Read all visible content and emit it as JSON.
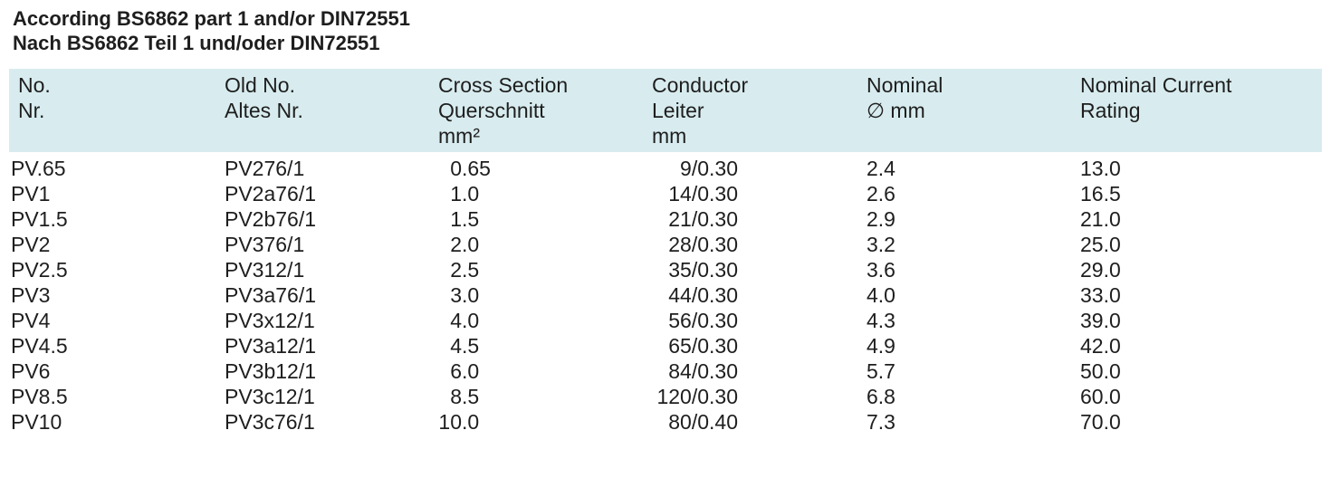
{
  "title": [
    "According BS6862 part 1 and/or DIN72551",
    "Nach BS6862 Teil 1 und/oder DIN72551"
  ],
  "table": {
    "header": [
      [
        "No.",
        "Nr."
      ],
      [
        "Old No.",
        "Altes Nr."
      ],
      [
        "Cross Section",
        "Querschnitt",
        "mm²"
      ],
      [
        "Conductor",
        "Leiter",
        "mm"
      ],
      [
        "Nominal",
        "∅ mm"
      ],
      [
        "Nominal Current",
        "Rating"
      ]
    ],
    "rows": [
      [
        "PV.65",
        "PV276/1",
        "0.65",
        "9/0.30",
        "2.4",
        "13.0"
      ],
      [
        "PV1",
        "PV2a76/1",
        "1.0",
        "14/0.30",
        "2.6",
        "16.5"
      ],
      [
        "PV1.5",
        "PV2b76/1",
        "1.5",
        "21/0.30",
        "2.9",
        "21.0"
      ],
      [
        "PV2",
        "PV376/1",
        "2.0",
        "28/0.30",
        "3.2",
        "25.0"
      ],
      [
        "PV2.5",
        "PV312/1",
        "2.5",
        "35/0.30",
        "3.6",
        "29.0"
      ],
      [
        "PV3",
        "PV3a76/1",
        "3.0",
        "44/0.30",
        "4.0",
        "33.0"
      ],
      [
        "PV4",
        "PV3x12/1",
        "4.0",
        "56/0.30",
        "4.3",
        "39.0"
      ],
      [
        "PV4.5",
        "PV3a12/1",
        "4.5",
        "65/0.30",
        "4.9",
        "42.0"
      ],
      [
        "PV6",
        "PV3b12/1",
        "6.0",
        "84/0.30",
        "5.7",
        "50.0"
      ],
      [
        "PV8.5",
        "PV3c12/1",
        "8.5",
        "120/0.30",
        "6.8",
        "60.0"
      ],
      [
        "PV10",
        "PV3c76/1",
        "10.0",
        "80/0.40",
        "7.3",
        "70.0"
      ]
    ]
  }
}
